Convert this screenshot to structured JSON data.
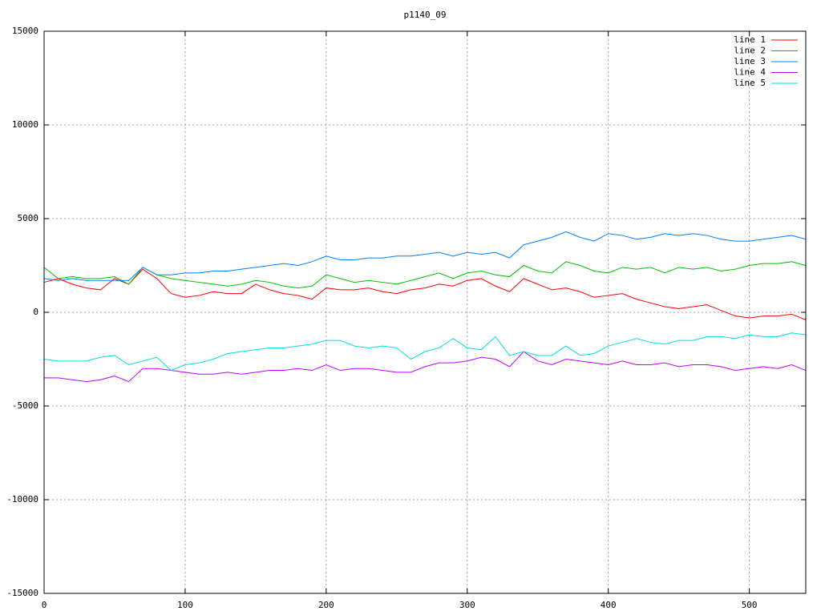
{
  "chart_data": {
    "type": "line",
    "title": "p1140_09",
    "x": [
      0,
      10,
      20,
      30,
      40,
      50,
      60,
      70,
      80,
      90,
      100,
      110,
      120,
      130,
      140,
      150,
      160,
      170,
      180,
      190,
      200,
      210,
      220,
      230,
      240,
      250,
      260,
      270,
      280,
      290,
      300,
      310,
      320,
      330,
      340,
      350,
      360,
      370,
      380,
      390,
      400,
      410,
      420,
      430,
      440,
      450,
      460,
      470,
      480,
      490,
      500,
      510,
      520,
      530,
      540
    ],
    "xlim": [
      0,
      540
    ],
    "xticks": [
      0,
      100,
      200,
      300,
      400,
      500
    ],
    "ylim": [
      -15000,
      15000
    ],
    "yticks": [
      -15000,
      -10000,
      -5000,
      0,
      5000,
      10000,
      15000
    ],
    "grid": true,
    "legend": "top-right",
    "series": [
      {
        "name": "line 1",
        "color": "#ff0000",
        "values": [
          1600,
          1800,
          1500,
          1300,
          1200,
          1800,
          1500,
          2300,
          1800,
          1000,
          800,
          900,
          1100,
          1000,
          1000,
          1500,
          1200,
          1000,
          900,
          700,
          1300,
          1200,
          1200,
          1300,
          1100,
          1000,
          1200,
          1300,
          1500,
          1400,
          1700,
          1800,
          1400,
          1100,
          1800,
          1500,
          1200,
          1300,
          1100,
          800,
          900,
          1000,
          700,
          500,
          300,
          200,
          300,
          400,
          100,
          -200,
          -300,
          -200,
          -200,
          -100,
          -400
        ]
      },
      {
        "name": "line 2",
        "color": "#00c000",
        "values": [
          2400,
          1800,
          1900,
          1800,
          1800,
          1900,
          1500,
          2400,
          2000,
          1800,
          1700,
          1600,
          1500,
          1400,
          1500,
          1700,
          1600,
          1400,
          1300,
          1400,
          2000,
          1800,
          1600,
          1700,
          1600,
          1500,
          1700,
          1900,
          2100,
          1800,
          2100,
          2200,
          2000,
          1900,
          2500,
          2200,
          2100,
          2700,
          2500,
          2200,
          2100,
          2400,
          2300,
          2400,
          2100,
          2400,
          2300,
          2400,
          2200,
          2300,
          2500,
          2600,
          2600,
          2700,
          2500
        ]
      },
      {
        "name": "line 3",
        "color": "#0080ff",
        "values": [
          1800,
          1700,
          1800,
          1700,
          1700,
          1700,
          1700,
          2400,
          2000,
          2000,
          2100,
          2100,
          2200,
          2200,
          2300,
          2400,
          2500,
          2600,
          2500,
          2700,
          3000,
          2800,
          2800,
          2900,
          2900,
          3000,
          3000,
          3100,
          3200,
          3000,
          3200,
          3100,
          3200,
          2900,
          3600,
          3800,
          4000,
          4300,
          4000,
          3800,
          4200,
          4100,
          3900,
          4000,
          4200,
          4100,
          4200,
          4100,
          3900,
          3800,
          3800,
          3900,
          4000,
          4100,
          3900
        ]
      },
      {
        "name": "line 4",
        "color": "#c000ff",
        "values": [
          -3500,
          -3500,
          -3600,
          -3700,
          -3600,
          -3400,
          -3700,
          -3000,
          -3000,
          -3100,
          -3200,
          -3300,
          -3300,
          -3200,
          -3300,
          -3200,
          -3100,
          -3100,
          -3000,
          -3100,
          -2800,
          -3100,
          -3000,
          -3000,
          -3100,
          -3200,
          -3200,
          -2900,
          -2700,
          -2700,
          -2600,
          -2400,
          -2500,
          -2900,
          -2100,
          -2600,
          -2800,
          -2500,
          -2600,
          -2700,
          -2800,
          -2600,
          -2800,
          -2800,
          -2700,
          -2900,
          -2800,
          -2800,
          -2900,
          -3100,
          -3000,
          -2900,
          -3000,
          -2800,
          -3100
        ]
      },
      {
        "name": "line 5",
        "color": "#00e0e0",
        "values": [
          -2500,
          -2600,
          -2600,
          -2600,
          -2400,
          -2300,
          -2800,
          -2600,
          -2400,
          -3100,
          -2800,
          -2700,
          -2500,
          -2200,
          -2100,
          -2000,
          -1900,
          -1900,
          -1800,
          -1700,
          -1500,
          -1500,
          -1800,
          -1900,
          -1800,
          -1900,
          -2500,
          -2100,
          -1900,
          -1400,
          -1900,
          -2000,
          -1300,
          -2300,
          -2100,
          -2300,
          -2300,
          -1800,
          -2300,
          -2200,
          -1800,
          -1600,
          -1400,
          -1600,
          -1700,
          -1500,
          -1500,
          -1300,
          -1300,
          -1400,
          -1200,
          -1300,
          -1300,
          -1100,
          -1200
        ]
      }
    ]
  }
}
